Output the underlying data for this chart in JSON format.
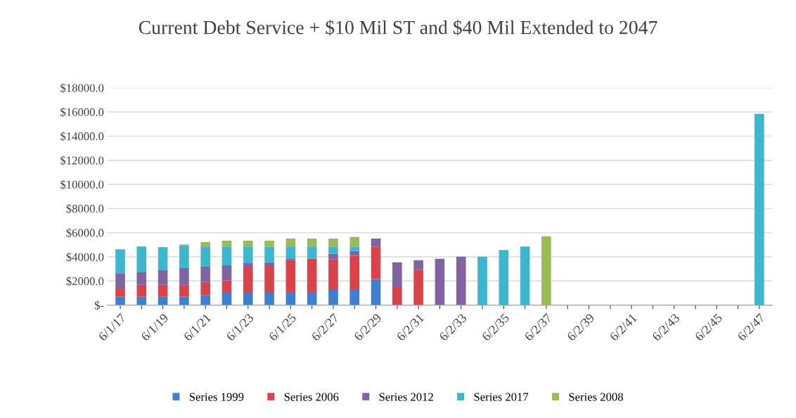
{
  "chart_data": {
    "type": "bar",
    "title": "Current Debt Service + $10 Mil ST and $40 Mil Extended to 2047",
    "stacked": true,
    "categories": [
      "6/1/17",
      null,
      "6/1/19",
      null,
      "6/1/21",
      null,
      "6/1/23",
      null,
      "6/1/25",
      null,
      "6/2/27",
      null,
      "6/2/29",
      null,
      "6/2/31",
      null,
      "6/2/33",
      null,
      "6/2/35",
      null,
      "6/2/37",
      null,
      "6/2/39",
      null,
      "6/2/41",
      null,
      "6/2/43",
      null,
      "6/2/45",
      null,
      "6/2/47"
    ],
    "series": [
      {
        "name": "Series 1999",
        "color": "#3f7fcf",
        "values": [
          720,
          720,
          720,
          720,
          840,
          1020,
          1020,
          1020,
          1080,
          1080,
          1260,
          1260,
          2160,
          0,
          0,
          0,
          0,
          0,
          0,
          0,
          0,
          0,
          0,
          0,
          0,
          0,
          0,
          0,
          0,
          0,
          0
        ]
      },
      {
        "name": "Series 2006",
        "color": "#d9434a",
        "values": [
          660,
          960,
          960,
          960,
          1080,
          1020,
          2160,
          2280,
          2640,
          2760,
          2520,
          2820,
          2700,
          1500,
          2940,
          0,
          0,
          0,
          0,
          0,
          0,
          0,
          0,
          0,
          0,
          0,
          0,
          0,
          0,
          0,
          0
        ]
      },
      {
        "name": "Series 2012",
        "color": "#8064a2",
        "values": [
          1260,
          1080,
          1260,
          1380,
          1260,
          1260,
          300,
          240,
          100,
          0,
          480,
          420,
          660,
          2040,
          780,
          3840,
          4020,
          0,
          0,
          0,
          0,
          0,
          0,
          0,
          0,
          0,
          0,
          0,
          0,
          0,
          0
        ]
      },
      {
        "name": "Series 2017",
        "color": "#3fb6cf",
        "values": [
          1980,
          2100,
          1860,
          1900,
          1680,
          1560,
          1380,
          1320,
          1040,
          1020,
          600,
          360,
          0,
          0,
          0,
          0,
          0,
          4020,
          4560,
          4860,
          0,
          0,
          0,
          0,
          0,
          0,
          0,
          0,
          0,
          0,
          15840
        ]
      },
      {
        "name": "Series 2008",
        "color": "#9bbb59",
        "values": [
          0,
          0,
          0,
          80,
          360,
          480,
          480,
          480,
          660,
          660,
          660,
          780,
          0,
          0,
          0,
          0,
          0,
          0,
          0,
          0,
          5700,
          0,
          0,
          0,
          0,
          0,
          0,
          0,
          0,
          0,
          0
        ]
      }
    ],
    "ylim": [
      0,
      18000
    ],
    "yticks": [
      {
        "value": 0,
        "label": "$-"
      },
      {
        "value": 2000,
        "label": "$2000.0"
      },
      {
        "value": 4000,
        "label": "$4000.0"
      },
      {
        "value": 6000,
        "label": "$6000.0"
      },
      {
        "value": 8000,
        "label": "$8000.0"
      },
      {
        "value": 10000,
        "label": "$10000.0"
      },
      {
        "value": 12000,
        "label": "$12000.0"
      },
      {
        "value": 14000,
        "label": "$14000.0"
      },
      {
        "value": 16000,
        "label": "$16000.0"
      },
      {
        "value": 18000,
        "label": "$18000.0"
      }
    ],
    "grid": "y",
    "legend": "bottom"
  }
}
